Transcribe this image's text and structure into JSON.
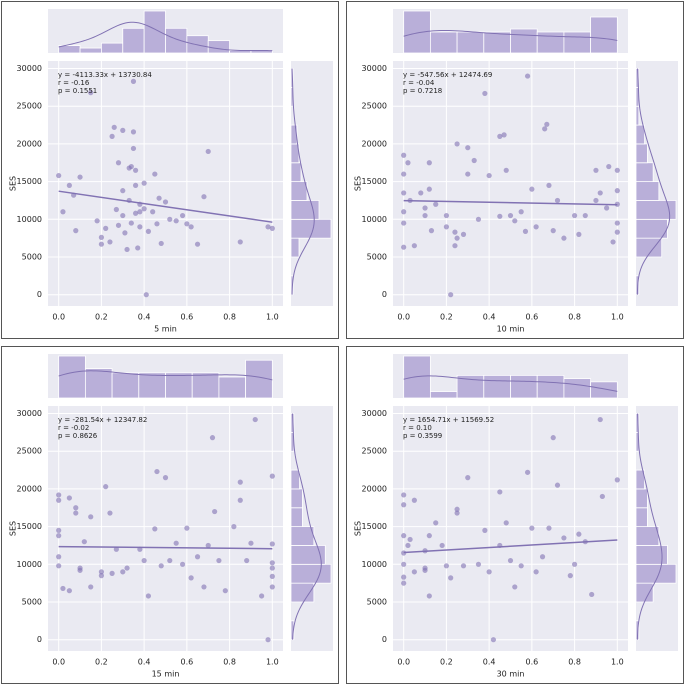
{
  "chart_data": [
    {
      "type": "scatter",
      "xlabel": "5 min",
      "ylabel": "SES",
      "color": "#8172b3",
      "hist_color": "#b4a9d6",
      "annotations": [
        "y = -4113.33x + 13730.84",
        "r = -0.16",
        "p = 0.1551"
      ],
      "fit": {
        "slope": -4113.33,
        "intercept": 13730.84
      },
      "x": [
        0.0,
        0.02,
        0.05,
        0.07,
        0.08,
        0.1,
        0.15,
        0.18,
        0.2,
        0.2,
        0.22,
        0.24,
        0.25,
        0.26,
        0.27,
        0.28,
        0.28,
        0.3,
        0.3,
        0.3,
        0.31,
        0.32,
        0.33,
        0.33,
        0.34,
        0.34,
        0.35,
        0.35,
        0.35,
        0.36,
        0.36,
        0.36,
        0.37,
        0.38,
        0.38,
        0.38,
        0.4,
        0.4,
        0.41,
        0.42,
        0.44,
        0.45,
        0.46,
        0.47,
        0.48,
        0.5,
        0.52,
        0.55,
        0.58,
        0.6,
        0.62,
        0.65,
        0.68,
        0.7,
        0.85,
        0.98,
        1.0
      ],
      "values": [
        15800,
        11000,
        14500,
        13200,
        8500,
        15600,
        26800,
        9800,
        7600,
        6700,
        8800,
        7000,
        21000,
        22200,
        11300,
        9200,
        17500,
        21800,
        13800,
        10500,
        8200,
        6000,
        16800,
        12500,
        17000,
        9500,
        21600,
        28300,
        19400,
        16500,
        10800,
        14500,
        6200,
        12000,
        11000,
        9000,
        11400,
        14800,
        0,
        8400,
        11000,
        16000,
        9400,
        12800,
        6800,
        12300,
        10000,
        9800,
        10500,
        9400,
        9000,
        6700,
        13000,
        19000,
        7000,
        9000,
        8800
      ],
      "xlim": [
        -0.05,
        1.05
      ],
      "ylim": [
        -1500,
        31000
      ],
      "xticks": [
        {
          "value": 0,
          "label": "0.0"
        },
        0.2,
        0.4,
        0.6,
        0.8,
        {
          "value": 1,
          "label": "1.0"
        }
      ],
      "yticks": [
        0,
        5000,
        10000,
        15000,
        20000,
        25000,
        30000
      ],
      "x_hist": {
        "bins": [
          0,
          0.1,
          0.2,
          0.3,
          0.4,
          0.5,
          0.6,
          0.7,
          0.8,
          0.9,
          1.0
        ],
        "counts": [
          3,
          2,
          4,
          10,
          17,
          10,
          7,
          5,
          1,
          1
        ]
      },
      "y_hist": {
        "bins": [
          0,
          2500,
          5000,
          7500,
          10000,
          12500,
          15000,
          17500,
          20000,
          22500,
          25000,
          27500,
          30000
        ],
        "counts": [
          1,
          0,
          4,
          20,
          14,
          8,
          5,
          4,
          3,
          0,
          1,
          1
        ]
      }
    },
    {
      "type": "scatter",
      "xlabel": "10 min",
      "ylabel": "SES",
      "color": "#8172b3",
      "hist_color": "#b4a9d6",
      "annotations": [
        "y = -547.56x + 12474.69",
        "r = -0.04",
        "p = 0.7218"
      ],
      "fit": {
        "slope": -547.56,
        "intercept": 12474.69
      },
      "x": [
        0.0,
        0.0,
        0.0,
        0.0,
        0.0,
        0.0,
        0.02,
        0.03,
        0.05,
        0.08,
        0.1,
        0.1,
        0.12,
        0.12,
        0.13,
        0.15,
        0.2,
        0.2,
        0.22,
        0.24,
        0.24,
        0.25,
        0.25,
        0.28,
        0.3,
        0.3,
        0.33,
        0.35,
        0.38,
        0.4,
        0.45,
        0.45,
        0.47,
        0.48,
        0.5,
        0.52,
        0.55,
        0.57,
        0.58,
        0.6,
        0.62,
        0.66,
        0.67,
        0.68,
        0.7,
        0.72,
        0.75,
        0.8,
        0.82,
        0.85,
        0.9,
        0.9,
        0.92,
        0.95,
        0.96,
        0.98,
        1.0,
        1.0,
        1.0,
        1.0,
        1.0
      ],
      "values": [
        18500,
        16000,
        13500,
        11000,
        9500,
        6300,
        17500,
        12500,
        6500,
        13500,
        10500,
        11500,
        17500,
        14000,
        8500,
        12000,
        9000,
        10500,
        0,
        6500,
        8300,
        7500,
        20000,
        8000,
        16000,
        19500,
        17800,
        10000,
        26700,
        15800,
        21000,
        10400,
        21200,
        16500,
        10500,
        9800,
        11000,
        8400,
        29000,
        14000,
        9000,
        22000,
        22600,
        14500,
        8500,
        12500,
        7500,
        10500,
        8000,
        10500,
        12500,
        16500,
        13500,
        11500,
        17000,
        7000,
        12000,
        8300,
        9500,
        13800,
        16500
      ],
      "xlim": [
        -0.05,
        1.05
      ],
      "ylim": [
        -1500,
        31000
      ],
      "xticks": [
        {
          "value": 0,
          "label": "0.0"
        },
        0.2,
        0.4,
        0.6,
        0.8,
        {
          "value": 1,
          "label": "1.0"
        }
      ],
      "yticks": [
        0,
        5000,
        10000,
        15000,
        20000,
        25000,
        30000
      ],
      "x_hist": {
        "bins": [
          0,
          0.125,
          0.25,
          0.375,
          0.5,
          0.625,
          0.75,
          0.875,
          1.0
        ],
        "counts": [
          14,
          7,
          7,
          7,
          8,
          7,
          7,
          12
        ]
      },
      "y_hist": {
        "bins": [
          0,
          2500,
          5000,
          7500,
          10000,
          12500,
          15000,
          17500,
          20000,
          22500,
          25000,
          27500,
          30000
        ],
        "counts": [
          1,
          0,
          9,
          11,
          14,
          8,
          6,
          4,
          3,
          1,
          1,
          1
        ]
      }
    },
    {
      "type": "scatter",
      "xlabel": "15 min",
      "ylabel": "SES",
      "color": "#8172b3",
      "hist_color": "#b4a9d6",
      "annotations": [
        "y = -281.54x + 12347.82",
        "r = -0.02",
        "p = 0.8626"
      ],
      "fit": {
        "slope": -281.54,
        "intercept": 12347.82
      },
      "x": [
        0.0,
        0.0,
        0.0,
        0.0,
        0.0,
        0.0,
        0.02,
        0.05,
        0.05,
        0.08,
        0.08,
        0.1,
        0.1,
        0.12,
        0.15,
        0.15,
        0.2,
        0.2,
        0.22,
        0.24,
        0.25,
        0.27,
        0.3,
        0.32,
        0.38,
        0.4,
        0.42,
        0.45,
        0.46,
        0.48,
        0.5,
        0.52,
        0.55,
        0.58,
        0.6,
        0.62,
        0.65,
        0.68,
        0.7,
        0.72,
        0.73,
        0.75,
        0.78,
        0.82,
        0.85,
        0.85,
        0.88,
        0.9,
        0.92,
        0.95,
        0.98,
        1.0,
        1.0,
        1.0,
        1.0,
        1.0,
        1.0
      ],
      "values": [
        19200,
        18500,
        14500,
        13800,
        11000,
        9800,
        6800,
        18800,
        6500,
        17500,
        16800,
        9200,
        9500,
        13000,
        7000,
        16300,
        8500,
        9000,
        20300,
        16800,
        8800,
        12000,
        9000,
        9500,
        12000,
        10500,
        5800,
        14700,
        22300,
        9800,
        21500,
        10500,
        12800,
        10000,
        14800,
        8200,
        11000,
        7000,
        12500,
        26800,
        17000,
        10500,
        6500,
        15000,
        18500,
        20900,
        10500,
        12800,
        29200,
        5800,
        0,
        21700,
        12700,
        10200,
        9500,
        8400,
        7000
      ],
      "xlim": [
        -0.05,
        1.05
      ],
      "ylim": [
        -1500,
        31000
      ],
      "xticks": [
        {
          "value": 0,
          "label": "0.0"
        },
        0.2,
        0.4,
        0.6,
        0.8,
        {
          "value": 1,
          "label": "1.0"
        }
      ],
      "yticks": [
        0,
        5000,
        10000,
        15000,
        20000,
        25000,
        30000
      ],
      "x_hist": {
        "bins": [
          0,
          0.125,
          0.25,
          0.375,
          0.5,
          0.625,
          0.75,
          0.875,
          1.0
        ],
        "counts": [
          10,
          7,
          6,
          6,
          6,
          6,
          5,
          9
        ]
      },
      "y_hist": {
        "bins": [
          0,
          2500,
          5000,
          7500,
          10000,
          12500,
          15000,
          17500,
          20000,
          22500,
          25000,
          27500,
          30000
        ],
        "counts": [
          1,
          0,
          8,
          14,
          12,
          8,
          4,
          4,
          3,
          0,
          1,
          1
        ]
      }
    },
    {
      "type": "scatter",
      "xlabel": "30 min",
      "ylabel": "SES",
      "color": "#8172b3",
      "hist_color": "#b4a9d6",
      "annotations": [
        "y = 1654.71x + 11569.52",
        "r = 0.10",
        "p = 0.3599"
      ],
      "fit": {
        "slope": 1654.71,
        "intercept": 11569.52
      },
      "x": [
        0.0,
        0.0,
        0.0,
        0.0,
        0.0,
        0.0,
        0.0,
        0.02,
        0.03,
        0.05,
        0.05,
        0.1,
        0.1,
        0.1,
        0.12,
        0.12,
        0.15,
        0.18,
        0.2,
        0.22,
        0.25,
        0.25,
        0.28,
        0.3,
        0.35,
        0.38,
        0.4,
        0.42,
        0.45,
        0.45,
        0.48,
        0.5,
        0.52,
        0.55,
        0.58,
        0.6,
        0.62,
        0.65,
        0.68,
        0.7,
        0.72,
        0.75,
        0.78,
        0.8,
        0.82,
        0.85,
        0.88,
        0.92,
        0.93,
        1.0
      ],
      "values": [
        19200,
        17900,
        13800,
        11500,
        10000,
        7500,
        8300,
        12500,
        13300,
        18500,
        9000,
        9500,
        9200,
        11800,
        5800,
        13800,
        15500,
        12500,
        9800,
        8200,
        16800,
        17300,
        9800,
        21500,
        10000,
        14500,
        9000,
        0,
        19600,
        12500,
        15500,
        10500,
        7000,
        9800,
        22200,
        14800,
        9000,
        11000,
        14800,
        26800,
        20500,
        13500,
        8500,
        10000,
        14000,
        13000,
        6000,
        29200,
        19000,
        21200
      ],
      "xlim": [
        -0.05,
        1.05
      ],
      "ylim": [
        -1500,
        31000
      ],
      "xticks": [
        {
          "value": 0,
          "label": "0.0"
        },
        0.2,
        0.4,
        0.6,
        0.8,
        {
          "value": 1,
          "label": "1.0"
        }
      ],
      "yticks": [
        0,
        5000,
        10000,
        15000,
        20000,
        25000,
        30000
      ],
      "x_hist": {
        "bins": [
          0,
          0.125,
          0.25,
          0.375,
          0.5,
          0.625,
          0.75,
          0.875,
          1.0
        ],
        "counts": [
          13,
          2,
          7,
          7,
          7,
          7,
          6,
          5
        ]
      },
      "y_hist": {
        "bins": [
          0,
          2500,
          5000,
          7500,
          10000,
          12500,
          15000,
          17500,
          20000,
          22500,
          25000,
          27500,
          30000
        ],
        "counts": [
          1,
          0,
          6,
          14,
          11,
          8,
          4,
          4,
          3,
          0,
          1,
          1
        ]
      }
    }
  ]
}
